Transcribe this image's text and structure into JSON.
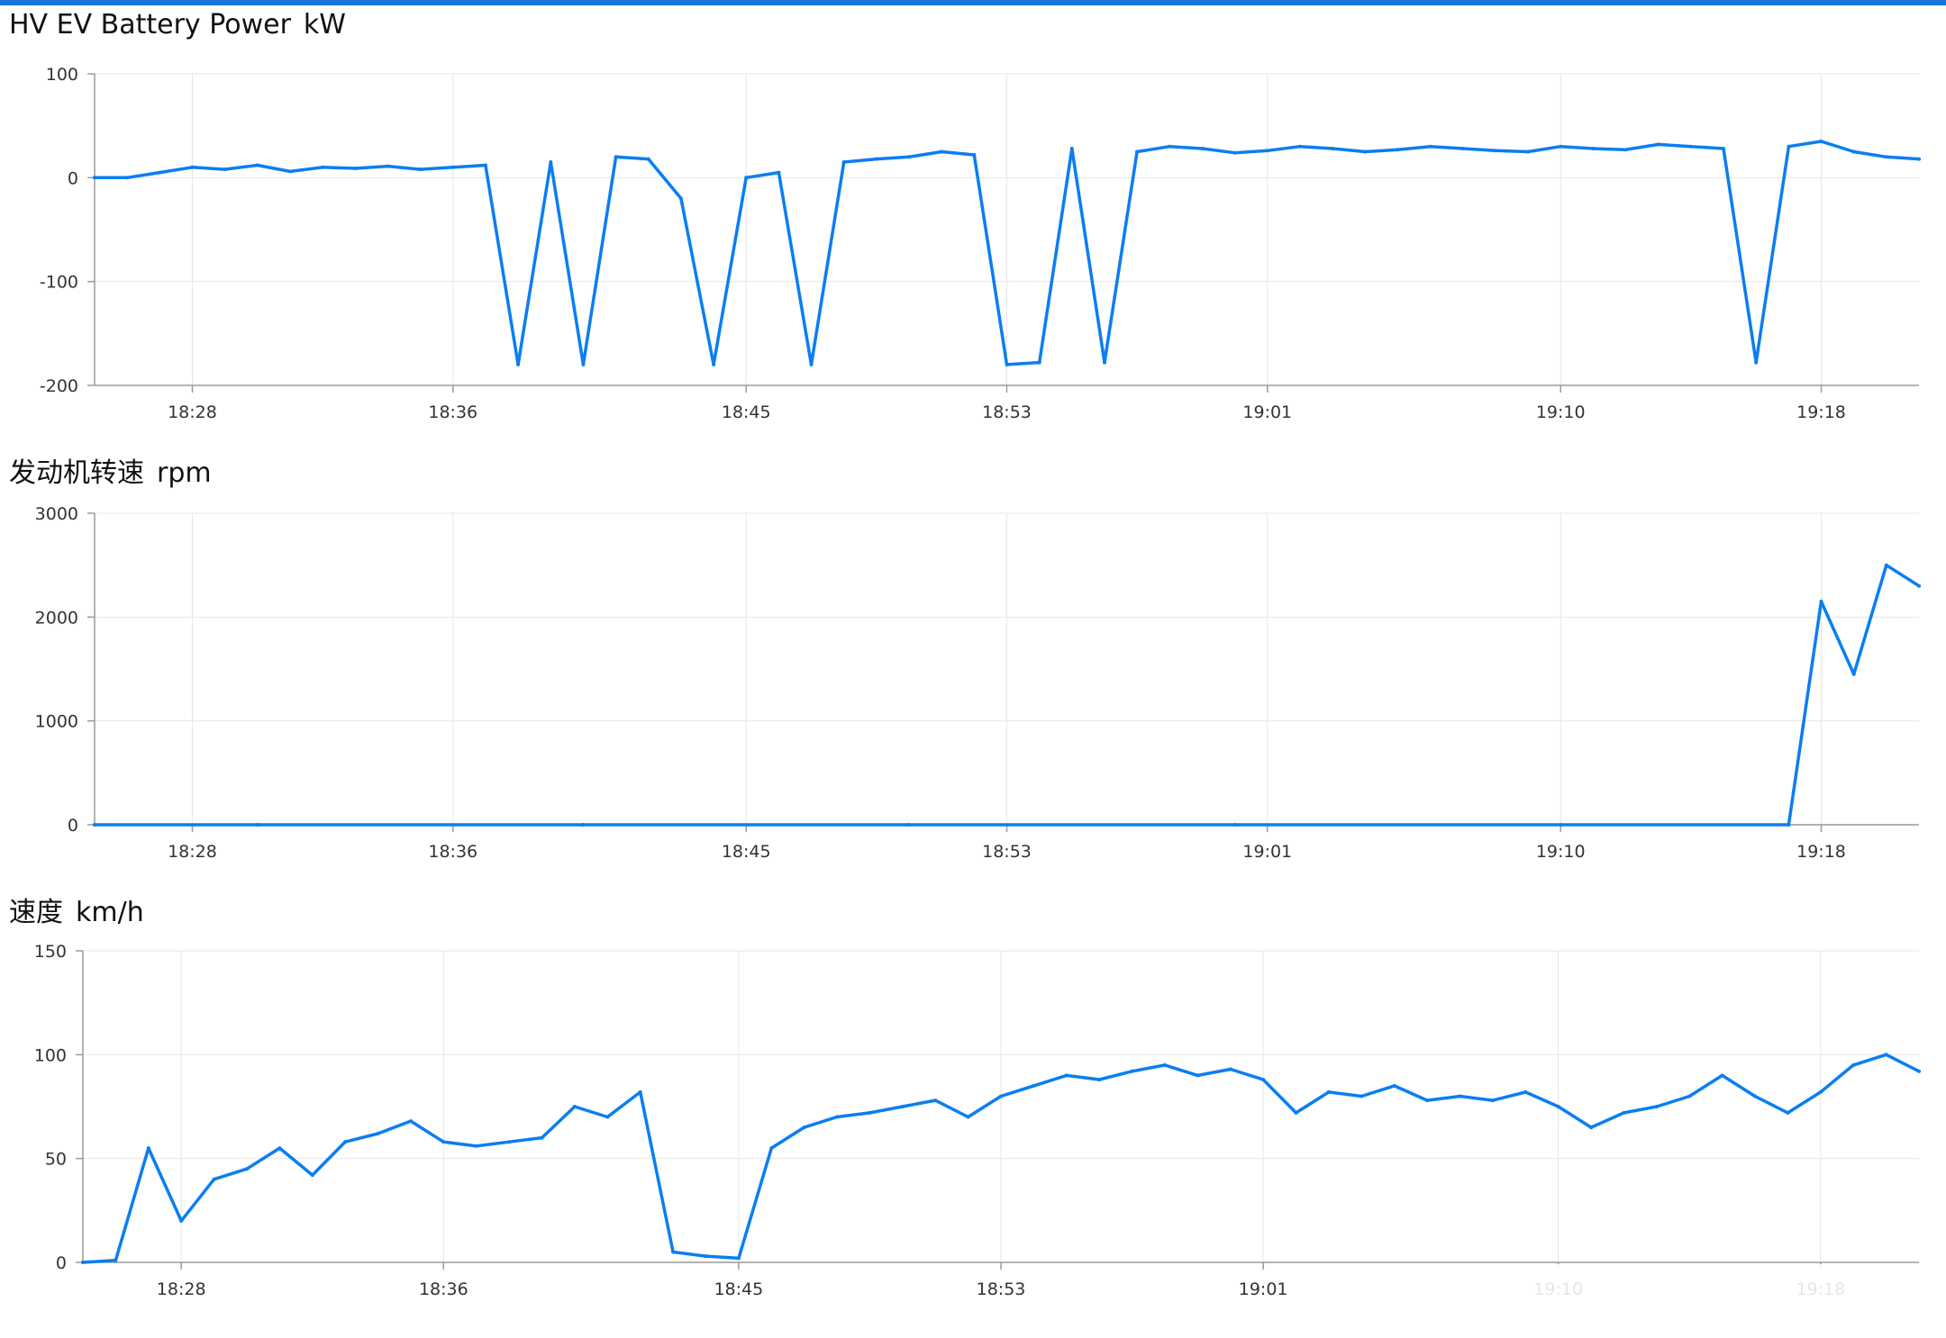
{
  "colors": {
    "accent": "#1a73d9",
    "series": "#0a7ef2",
    "grid": "#e6e6e6",
    "axis": "#9a9a9a"
  },
  "chart_data": [
    {
      "type": "line",
      "title": "HV EV Battery Power",
      "unit": "kW",
      "xlabel": "",
      "ylabel": "",
      "x_ticks": [
        "18:28",
        "18:36",
        "18:45",
        "18:53",
        "19:01",
        "19:10",
        "19:18"
      ],
      "x_range": [
        "18:25",
        "19:21"
      ],
      "y_ticks": [
        100,
        0,
        -100,
        -200
      ],
      "ylim": [
        -200,
        100
      ],
      "grid": true,
      "series": [
        {
          "x": [
            "18:25",
            "18:26",
            "18:27",
            "18:28",
            "18:29",
            "18:30",
            "18:31",
            "18:32",
            "18:33",
            "18:34",
            "18:35",
            "18:36",
            "18:37",
            "18:38",
            "18:39",
            "18:40",
            "18:41",
            "18:42",
            "18:43",
            "18:44",
            "18:45",
            "18:46",
            "18:47",
            "18:48",
            "18:49",
            "18:50",
            "18:51",
            "18:52",
            "18:53",
            "18:54",
            "18:55",
            "18:56",
            "18:57",
            "18:58",
            "18:59",
            "19:00",
            "19:01",
            "19:02",
            "19:03",
            "19:04",
            "19:05",
            "19:06",
            "19:07",
            "19:08",
            "19:09",
            "19:10",
            "19:11",
            "19:12",
            "19:13",
            "19:14",
            "19:15",
            "19:16",
            "19:17",
            "19:18",
            "19:19",
            "19:20",
            "19:21"
          ],
          "values": [
            0,
            0,
            5,
            10,
            8,
            12,
            6,
            10,
            9,
            11,
            8,
            10,
            12,
            -180,
            15,
            -180,
            20,
            18,
            -20,
            -180,
            0,
            5,
            -180,
            15,
            18,
            20,
            25,
            22,
            -180,
            -178,
            28,
            -178,
            25,
            30,
            28,
            24,
            26,
            30,
            28,
            25,
            27,
            30,
            28,
            26,
            25,
            30,
            28,
            27,
            32,
            30,
            28,
            -178,
            30,
            35,
            25,
            20,
            18
          ]
        }
      ]
    },
    {
      "type": "line",
      "title": "发动机转速",
      "unit": "rpm",
      "xlabel": "",
      "ylabel": "",
      "x_ticks": [
        "18:28",
        "18:36",
        "18:45",
        "18:53",
        "19:01",
        "19:10",
        "19:18"
      ],
      "x_range": [
        "18:25",
        "19:21"
      ],
      "y_ticks": [
        3000,
        2000,
        1000,
        0
      ],
      "ylim": [
        0,
        3000
      ],
      "grid": true,
      "series": [
        {
          "x": [
            "18:25",
            "18:30",
            "18:40",
            "18:50",
            "19:00",
            "19:10",
            "19:17",
            "19:18",
            "19:19",
            "19:20",
            "19:21"
          ],
          "values": [
            0,
            0,
            0,
            0,
            0,
            0,
            0,
            2150,
            1450,
            2500,
            2300
          ]
        }
      ]
    },
    {
      "type": "line",
      "title": "速度",
      "unit": "km/h",
      "xlabel": "",
      "ylabel": "",
      "x_ticks": [
        "18:28",
        "18:36",
        "18:45",
        "18:53",
        "19:01",
        "19:10",
        "19:18"
      ],
      "x_range": [
        "18:25",
        "19:21"
      ],
      "y_ticks": [
        150,
        100,
        50,
        0
      ],
      "ylim": [
        0,
        150
      ],
      "grid": true,
      "series": [
        {
          "x": [
            "18:25",
            "18:26",
            "18:27",
            "18:28",
            "18:29",
            "18:30",
            "18:31",
            "18:32",
            "18:33",
            "18:34",
            "18:35",
            "18:36",
            "18:37",
            "18:38",
            "18:39",
            "18:40",
            "18:41",
            "18:42",
            "18:43",
            "18:44",
            "18:45",
            "18:46",
            "18:47",
            "18:48",
            "18:49",
            "18:50",
            "18:51",
            "18:52",
            "18:53",
            "18:54",
            "18:55",
            "18:56",
            "18:57",
            "18:58",
            "18:59",
            "19:00",
            "19:01",
            "19:02",
            "19:03",
            "19:04",
            "19:05",
            "19:06",
            "19:07",
            "19:08",
            "19:09",
            "19:10",
            "19:11",
            "19:12",
            "19:13",
            "19:14",
            "19:15",
            "19:16",
            "19:17",
            "19:18",
            "19:19",
            "19:20",
            "19:21"
          ],
          "values": [
            0,
            1,
            55,
            20,
            40,
            45,
            55,
            42,
            58,
            62,
            68,
            58,
            56,
            58,
            60,
            75,
            70,
            82,
            5,
            3,
            2,
            55,
            65,
            70,
            72,
            75,
            78,
            70,
            80,
            85,
            90,
            88,
            92,
            95,
            90,
            93,
            88,
            72,
            82,
            80,
            85,
            78,
            80,
            78,
            82,
            75,
            65,
            72,
            75,
            80,
            90,
            80,
            72,
            82,
            95,
            100,
            92
          ]
        }
      ]
    }
  ]
}
